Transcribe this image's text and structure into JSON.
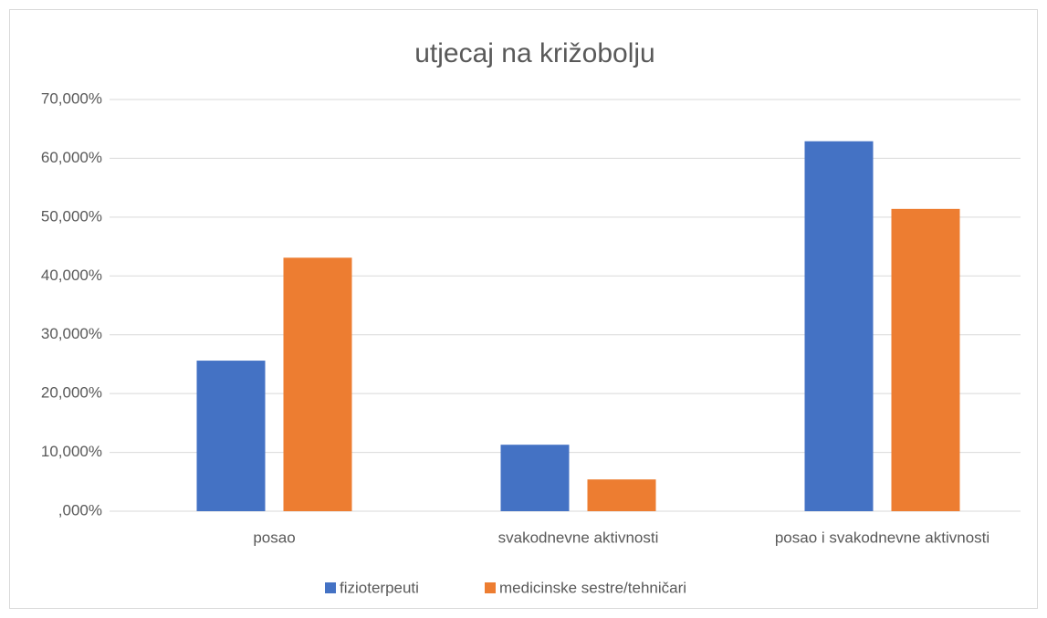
{
  "chart_data": {
    "type": "bar",
    "title": "utjecaj na križobolju",
    "categories": [
      "posao",
      "svakodnevne aktivnosti",
      "posao i svakodnevne aktivnosti"
    ],
    "series": [
      {
        "name": "fizioterpeuti",
        "color": "#4472c4",
        "values": [
          25.6,
          11.3,
          62.9
        ]
      },
      {
        "name": "medicinske sestre/tehničari",
        "color": "#ed7d31",
        "values": [
          43.1,
          5.4,
          51.4
        ]
      }
    ],
    "ylim": [
      0,
      70
    ],
    "yticks": [
      {
        "value": 0,
        "label": ",000%"
      },
      {
        "value": 10,
        "label": "10,000%"
      },
      {
        "value": 20,
        "label": "20,000%"
      },
      {
        "value": 30,
        "label": "30,000%"
      },
      {
        "value": 40,
        "label": "40,000%"
      },
      {
        "value": 50,
        "label": "50,000%"
      },
      {
        "value": 60,
        "label": "60,000%"
      },
      {
        "value": 70,
        "label": "70,000%"
      }
    ],
    "grid": true,
    "legend": "bottom"
  }
}
